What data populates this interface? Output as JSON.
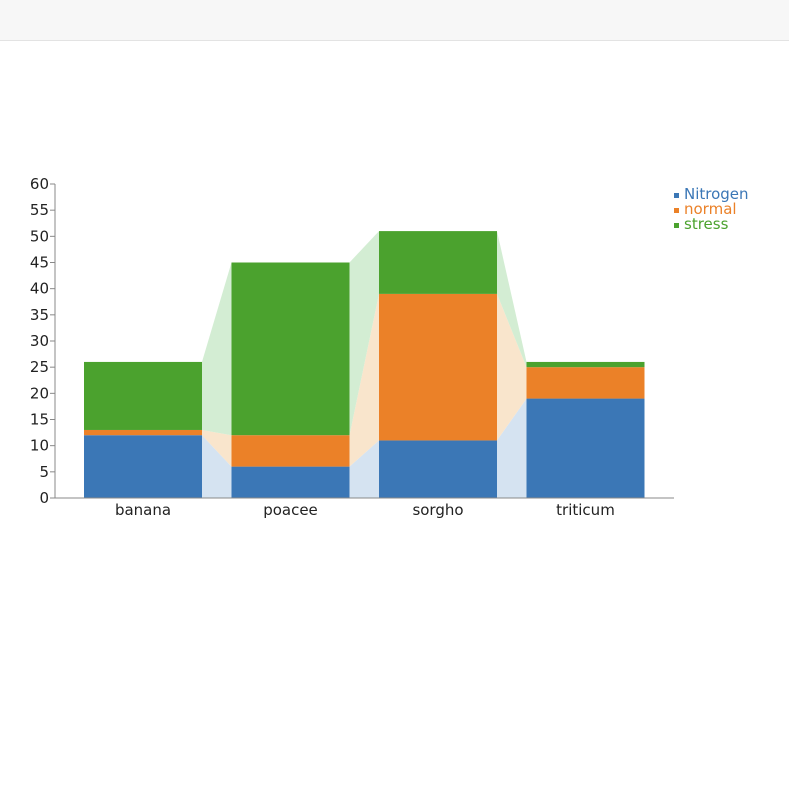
{
  "chart_data": {
    "type": "bar",
    "stacked": true,
    "categories": [
      "banana",
      "poacee",
      "sorgho",
      "triticum"
    ],
    "series": [
      {
        "name": "Nitrogen",
        "values": [
          12,
          6,
          11,
          19
        ],
        "color": "#3b77b6",
        "link_color": "#d5e3f1"
      },
      {
        "name": "normal",
        "values": [
          1,
          6,
          28,
          6
        ],
        "color": "#eb8128",
        "link_color": "#f9e5cc"
      },
      {
        "name": "stress",
        "values": [
          13,
          33,
          12,
          1
        ],
        "color": "#4ba22e",
        "link_color": "#d3edd3"
      }
    ],
    "ylim": [
      0,
      60
    ],
    "yticks": [
      0,
      5,
      10,
      15,
      20,
      25,
      30,
      35,
      40,
      45,
      50,
      55,
      60
    ],
    "legend_position": "top-right",
    "title": "",
    "xlabel": "",
    "ylabel": ""
  }
}
